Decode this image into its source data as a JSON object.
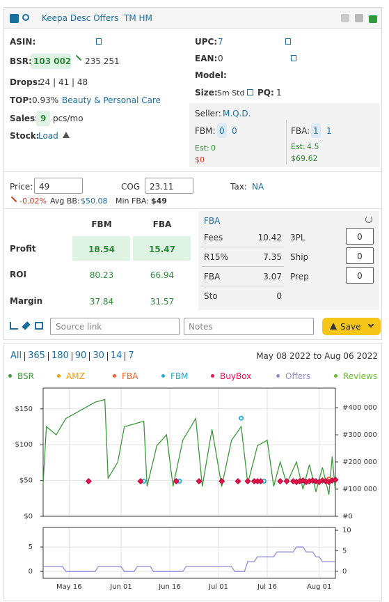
{
  "header": {
    "menu": "Keepa Desc Offers",
    "tag": "TM HM"
  },
  "info": {
    "asin_label": "ASIN:",
    "bsr_label": "BSR:",
    "bsr": "103 002",
    "bsr_avg": "235 251",
    "drops_label": "Drops:",
    "drops": "24 | 41 | 48",
    "top_label": "TOP:",
    "top_pct": "0.93%",
    "top_category": "Beauty & Personal Care",
    "sales_label": "Sales:",
    "sales": "9",
    "sales_unit": "pcs/mo",
    "stock_label": "Stock:",
    "stock_link": "Load",
    "upc_label": "UPC:",
    "upc": "7",
    "ean_label": "EAN:",
    "ean": "0",
    "model_label": "Model:",
    "size_label": "Size:",
    "size": "Sm Std",
    "pq_label": "PQ:",
    "pq": "1"
  },
  "seller": {
    "label": "Seller:",
    "name": "M.Q.D.",
    "fbm_label": "FBM:",
    "fbm": [
      "0",
      "0"
    ],
    "fba_label": "FBA:",
    "fba": [
      "1",
      "1"
    ],
    "est_label": "Est:",
    "fbm_est": "0",
    "fbm_est_value": "$0",
    "fba_est": "4.5",
    "fba_est_value": "$69.62"
  },
  "pricing": {
    "price_label": "Price:",
    "price": "49",
    "cog_label": "COG",
    "cog": "23.11",
    "tax_label": "Tax:",
    "tax": "NA",
    "change": "-0.02%",
    "avg_bb_label": "Avg BB:",
    "avg_bb": "$50.08",
    "min_fba_label": "Min FBA:",
    "min_fba": "$49"
  },
  "profit": {
    "columns": [
      "FBM",
      "FBA"
    ],
    "rows": [
      {
        "label": "Profit",
        "values": [
          "18.54",
          "15.47"
        ]
      },
      {
        "label": "ROI",
        "values": [
          "80.23",
          "66.94"
        ]
      },
      {
        "label": "Margin",
        "values": [
          "37.84",
          "31.57"
        ]
      }
    ]
  },
  "fees": {
    "mode": "FBA",
    "rows": [
      {
        "label": "Fees",
        "value": "10.42",
        "field": "3PL",
        "input": "0"
      },
      {
        "label": "R15%",
        "value": "7.35",
        "field": "Ship",
        "input": "0"
      },
      {
        "label": "FBA",
        "value": "3.07",
        "field": "Prep",
        "input": "0"
      },
      {
        "label": "Sto",
        "value": "0"
      }
    ]
  },
  "tools": {
    "source_placeholder": "Source link",
    "notes_placeholder": "Notes",
    "save": "Save"
  },
  "history": {
    "ranges": [
      "All",
      "365",
      "180",
      "90",
      "30",
      "14",
      "7"
    ],
    "date_range": "May 08 2022 to Aug 06 2022"
  },
  "chart_data": [
    {
      "type": "line",
      "grid": true,
      "xlim": [
        "2022-05-08",
        "2022-08-06"
      ],
      "ylim": [
        0,
        179
      ],
      "yticks": [
        {
          "value": 0,
          "label": "$0"
        },
        {
          "value": 50,
          "label": "$50"
        },
        {
          "value": 100,
          "label": "$100"
        },
        {
          "value": 150,
          "label": "$150"
        }
      ],
      "y2lim": [
        0,
        472000
      ],
      "y2ticks": [
        {
          "value": 0,
          "label": "#0"
        },
        {
          "value": 100000,
          "label": "#100 000"
        },
        {
          "value": 200000,
          "label": "#200 000"
        },
        {
          "value": 300000,
          "label": "#300 000"
        },
        {
          "value": 400000,
          "label": "#400 000"
        }
      ],
      "series": [
        {
          "name": "BSR",
          "color": "#3a9a3a",
          "mark": "line",
          "axis": "y2",
          "x": [
            "2022-05-08",
            "2022-05-09",
            "2022-05-12",
            "2022-05-15",
            "2022-05-18",
            "2022-05-21",
            "2022-05-24",
            "2022-05-27",
            "2022-05-28",
            "2022-05-31",
            "2022-06-02",
            "2022-06-05",
            "2022-06-08",
            "2022-06-09",
            "2022-06-12",
            "2022-06-15",
            "2022-06-17",
            "2022-06-20",
            "2022-06-24",
            "2022-06-26",
            "2022-06-29",
            "2022-07-02",
            "2022-07-05",
            "2022-07-08",
            "2022-07-10",
            "2022-07-13",
            "2022-07-16",
            "2022-07-18",
            "2022-07-20",
            "2022-07-22",
            "2022-07-25",
            "2022-07-27",
            "2022-07-29",
            "2022-07-31",
            "2022-08-02",
            "2022-08-04",
            "2022-08-05",
            "2022-08-06"
          ],
          "values": [
            120000,
            330000,
            300000,
            360000,
            380000,
            400000,
            420000,
            430000,
            140000,
            200000,
            330000,
            340000,
            350000,
            110000,
            260000,
            300000,
            110000,
            280000,
            360000,
            110000,
            320000,
            110000,
            280000,
            330000,
            120000,
            260000,
            280000,
            110000,
            200000,
            120000,
            200000,
            100000,
            190000,
            90000,
            180000,
            80000,
            220000,
            90000
          ]
        },
        {
          "name": "AMZ",
          "color": "#f39c12",
          "mark": "circle",
          "x": [],
          "values": []
        },
        {
          "name": "FBA",
          "color": "#f0622c",
          "mark": "circle",
          "x": [
            "2022-08-04"
          ],
          "values": [
            52
          ]
        },
        {
          "name": "FBM",
          "color": "#2aa6d6",
          "mark": "circle",
          "x": [
            "2022-06-08",
            "2022-06-19",
            "2022-07-08",
            "2022-07-15"
          ],
          "values": [
            49,
            49,
            137,
            49
          ]
        },
        {
          "name": "BuyBox",
          "color": "#e8134d",
          "mark": "diamond",
          "x": [
            "2022-05-22",
            "2022-06-07",
            "2022-06-18",
            "2022-06-25",
            "2022-07-02",
            "2022-07-07",
            "2022-07-10",
            "2022-07-12",
            "2022-07-13",
            "2022-07-14",
            "2022-07-20",
            "2022-07-22",
            "2022-07-24",
            "2022-07-25",
            "2022-07-26",
            "2022-07-27",
            "2022-07-28",
            "2022-07-29",
            "2022-07-30",
            "2022-07-31",
            "2022-08-01",
            "2022-08-02",
            "2022-08-03",
            "2022-08-04",
            "2022-08-05",
            "2022-08-06"
          ],
          "values": [
            49,
            49,
            49,
            49,
            49,
            49,
            49,
            49,
            49,
            49,
            49,
            49,
            49,
            48,
            49,
            50,
            48,
            49,
            50,
            49,
            48,
            50,
            49,
            48,
            50,
            51
          ]
        }
      ]
    },
    {
      "type": "line",
      "grid": true,
      "xlim": [
        "2022-05-08",
        "2022-08-06"
      ],
      "xticks": [
        {
          "value": "2022-05-16",
          "label": "May 16"
        },
        {
          "value": "2022-06-01",
          "label": "Jun 01"
        },
        {
          "value": "2022-06-16",
          "label": "Jun 16"
        },
        {
          "value": "2022-07-01",
          "label": "Jul 01"
        },
        {
          "value": "2022-07-16",
          "label": "Jul 16"
        },
        {
          "value": "2022-08-01",
          "label": "Aug 01"
        }
      ],
      "ylim": [
        -1.4,
        9
      ],
      "yticks": [
        0,
        5
      ],
      "y2lim": [
        -1.7,
        10.7
      ],
      "y2ticks": [
        0,
        5,
        10
      ],
      "series": [
        {
          "name": "Offers",
          "color": "#8e8ed6",
          "mark": "line",
          "x": [
            "2022-05-08",
            "2022-05-14",
            "2022-05-15",
            "2022-05-24",
            "2022-05-25",
            "2022-06-01",
            "2022-06-02",
            "2022-06-05",
            "2022-06-06",
            "2022-06-10",
            "2022-06-11",
            "2022-06-20",
            "2022-06-21",
            "2022-07-05",
            "2022-07-06",
            "2022-07-09",
            "2022-07-10",
            "2022-07-12",
            "2022-07-13",
            "2022-07-18",
            "2022-07-19",
            "2022-07-24",
            "2022-07-25",
            "2022-07-27",
            "2022-07-28",
            "2022-07-30",
            "2022-07-31",
            "2022-08-01",
            "2022-08-02",
            "2022-08-06"
          ],
          "values": [
            1,
            1,
            0,
            0,
            1,
            1,
            0,
            0,
            1,
            1,
            0,
            0,
            1,
            1,
            0,
            0,
            2,
            2,
            3,
            3,
            4,
            4,
            5,
            5,
            4,
            4,
            3,
            3,
            2,
            2
          ]
        },
        {
          "name": "Reviews",
          "color": "#6abf2f",
          "mark": "line",
          "axis": "y2",
          "x": [],
          "values": []
        }
      ]
    }
  ]
}
